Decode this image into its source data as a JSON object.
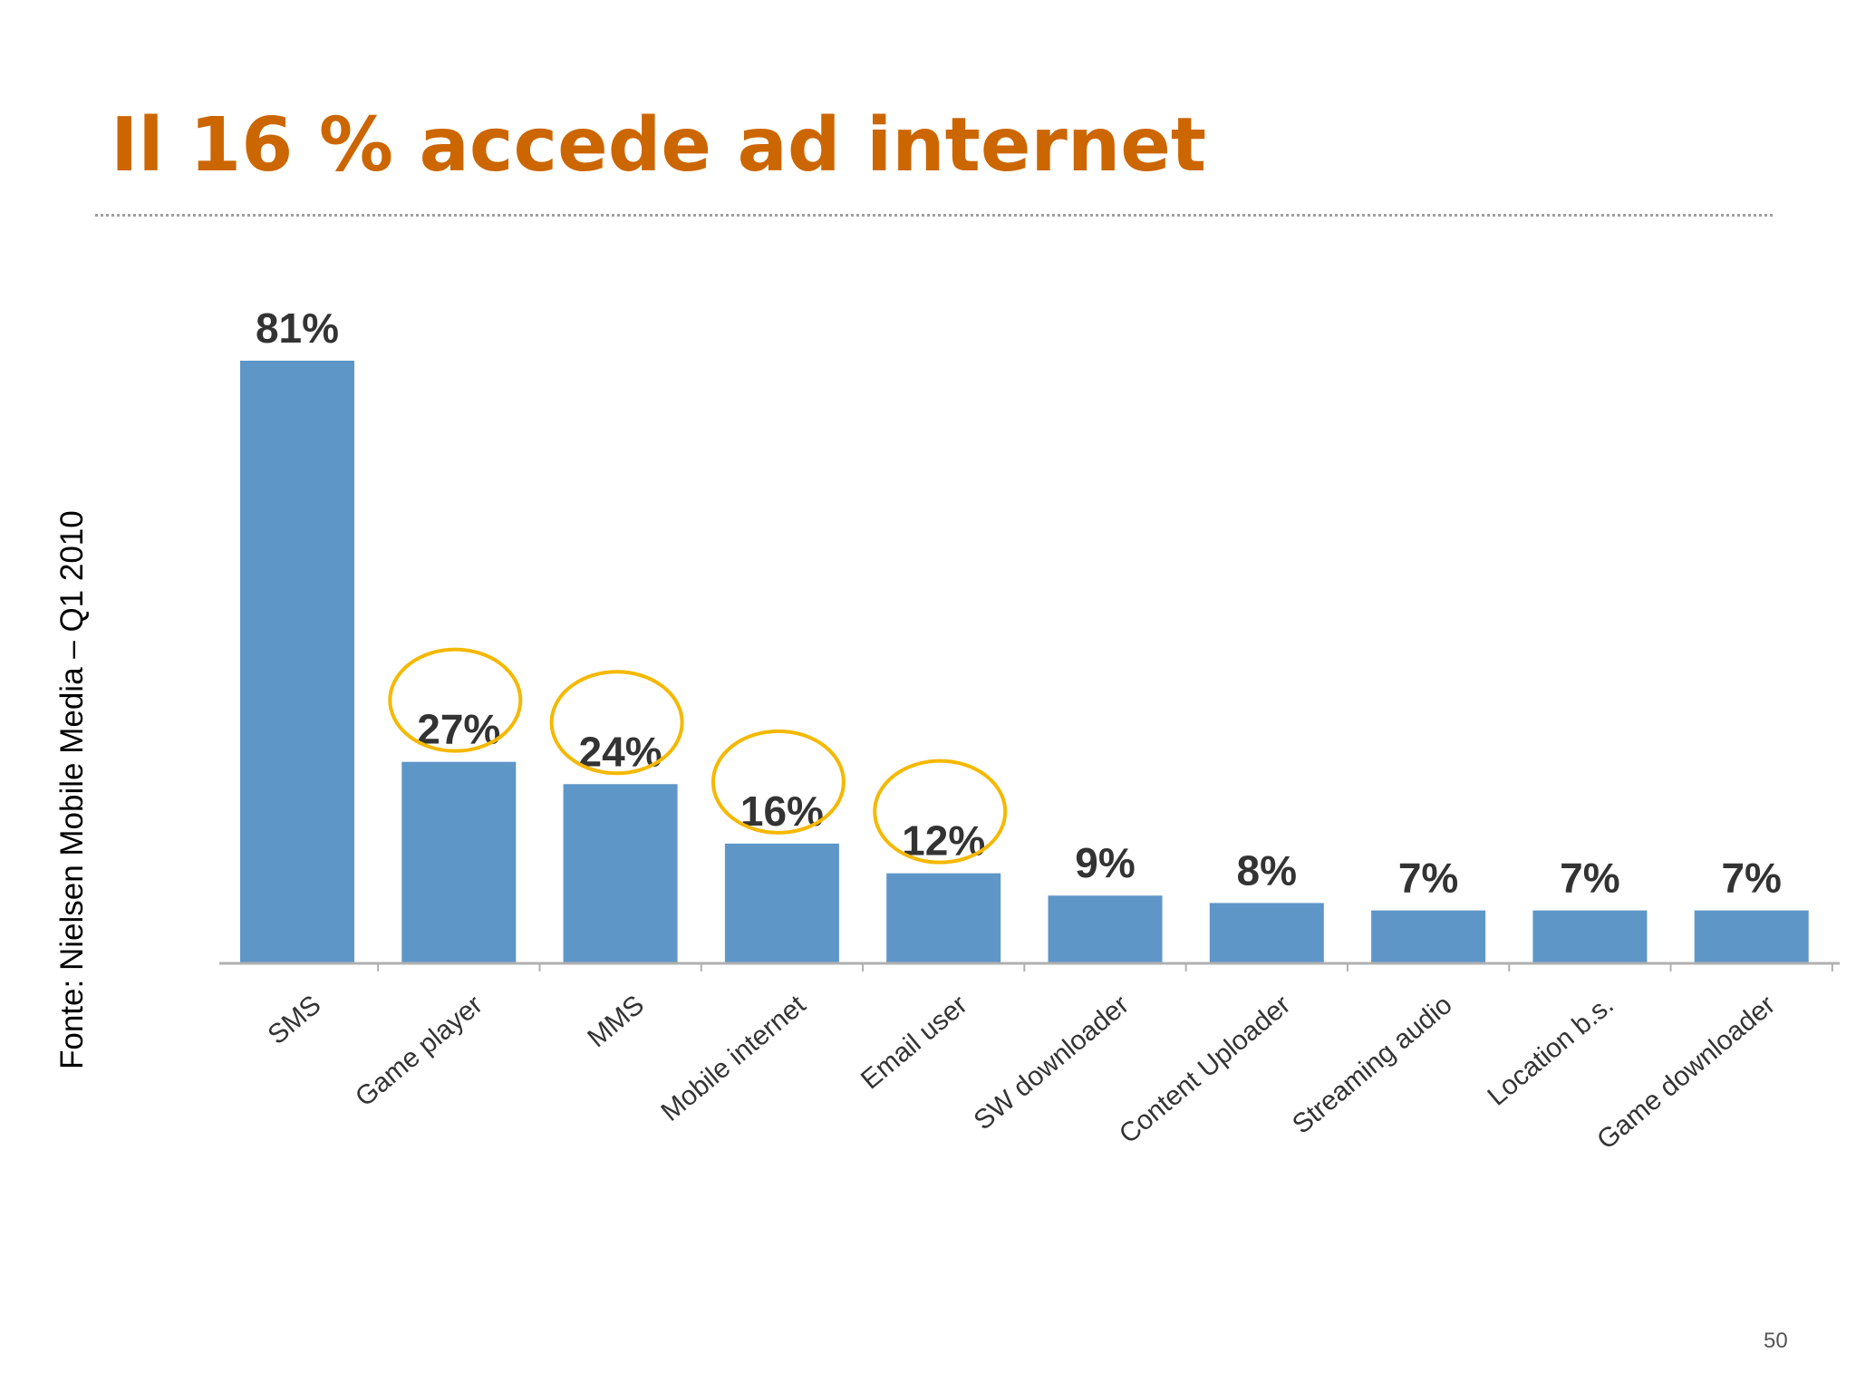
{
  "slide": {
    "title": "Il 16 % accede ad internet",
    "source": "Fonte: Nielsen Mobile Media – Q1 2010",
    "page_number": "50"
  },
  "colors": {
    "title": "#cc6600",
    "bar": "#5e96c8",
    "highlight_circle": "#f5b800",
    "axis": "#b0b0b0",
    "label": "#333333"
  },
  "chart_data": {
    "type": "bar",
    "title": "",
    "xlabel": "",
    "ylabel": "",
    "ylim": [
      0,
      81
    ],
    "grid": false,
    "categories": [
      "SMS",
      "Game player",
      "MMS",
      "Mobile internet",
      "Email user",
      "SW downloader",
      "Content Uploader",
      "Streaming audio",
      "Location b.s.",
      "Game downloader"
    ],
    "values": [
      81,
      27,
      24,
      16,
      12,
      9,
      8,
      7,
      7,
      7
    ],
    "value_labels": [
      "81%",
      "27%",
      "24%",
      "16%",
      "12%",
      "9%",
      "8%",
      "7%",
      "7%",
      "7%"
    ],
    "highlighted": [
      "Game player",
      "MMS",
      "Mobile internet",
      "Email user"
    ]
  }
}
